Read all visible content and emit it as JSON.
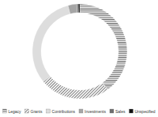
{
  "chart_data": {
    "type": "pie",
    "hole": true,
    "categories": [
      "Legacy",
      "Grants",
      "Contributions",
      "Investments",
      "Sales",
      "Unspecified"
    ],
    "values": [
      40,
      24,
      32,
      3,
      0.5,
      0.5
    ],
    "colors": [
      "#555555",
      "#777777",
      "#dddddd",
      "#a6a6a6",
      "#6e6e6e",
      "#111111"
    ],
    "legend": "bottom"
  }
}
